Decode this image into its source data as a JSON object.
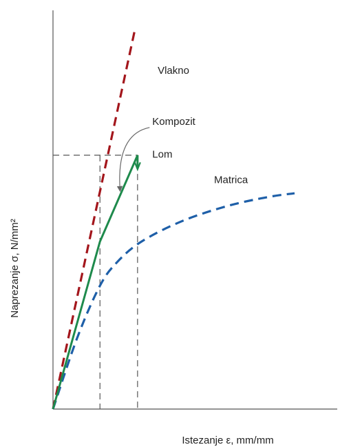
{
  "chart_data": {
    "type": "line",
    "title": "",
    "xlabel": "Istezanje ε, mm/mm",
    "ylabel": "Naprezanje σ, N/mm²",
    "grid": false,
    "legend": "none",
    "xlim": [
      0,
      100
    ],
    "ylim": [
      0,
      100
    ],
    "series": [
      {
        "name": "Vlakno",
        "style": "dashed",
        "color": "#a3161c",
        "points": [
          [
            0,
            0
          ],
          [
            30.5,
            149.4
          ]
        ]
      },
      {
        "name": "Matrica",
        "style": "dashed",
        "color": "#1e5fa8",
        "points": [
          [
            0,
            0
          ],
          [
            9,
            28
          ],
          [
            17.5,
            48.6
          ],
          [
            24,
            58
          ],
          [
            33,
            66
          ],
          [
            48,
            74
          ],
          [
            65,
            80
          ],
          [
            80,
            83.5
          ],
          [
            90,
            85
          ]
        ]
      },
      {
        "name": "Kompozit",
        "style": "solid",
        "color": "#1e8a4c",
        "points": [
          [
            0,
            0
          ],
          [
            17.5,
            66
          ],
          [
            31.5,
            100
          ],
          [
            31.5,
            95
          ]
        ]
      }
    ],
    "reference_lines": [
      {
        "style": "dashed",
        "color": "#555555",
        "points": [
          [
            0,
            100
          ],
          [
            31.5,
            100
          ],
          [
            31.5,
            0
          ]
        ]
      },
      {
        "style": "dashed",
        "color": "#555555",
        "points": [
          [
            17.5,
            100
          ],
          [
            17.5,
            0
          ]
        ]
      }
    ],
    "annotations": [
      {
        "text": "Vlakno",
        "at": [
          39,
          132
        ]
      },
      {
        "text": "Kompozit",
        "at": [
          37,
          112
        ],
        "arrow_to": [
          25,
          86
        ]
      },
      {
        "text": "Lom",
        "at": [
          37,
          99
        ]
      },
      {
        "text": "Matrica",
        "at": [
          60,
          89
        ]
      }
    ]
  }
}
